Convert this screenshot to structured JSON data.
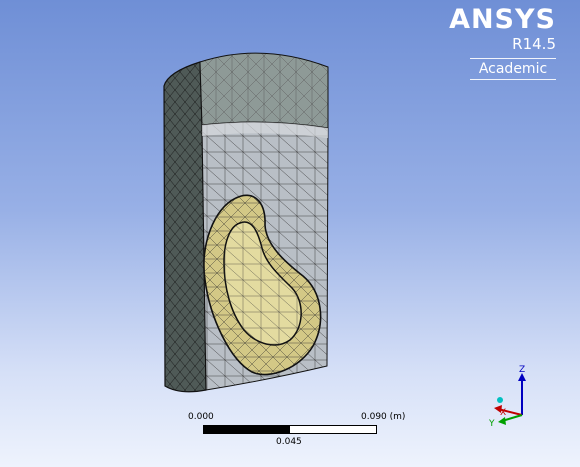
{
  "branding": {
    "product": "ANSYS",
    "version": "R14.5",
    "edition": "Academic"
  },
  "scale": {
    "min_label": "0.000",
    "max_label": "0.090 (m)",
    "mid_label": "0.045"
  },
  "triad": {
    "x_label": "X",
    "y_label": "Y",
    "z_label": "Z"
  },
  "colors": {
    "background_top": "#6f8fd6",
    "background_bottom": "#eef3fd",
    "mesh_line": "#1a1a1a",
    "solid_face": "#bcc4cc",
    "organ_fill": "#d9cf8a",
    "x_axis": "#c00000",
    "y_axis": "#00a000",
    "z_axis": "#0000c0"
  }
}
